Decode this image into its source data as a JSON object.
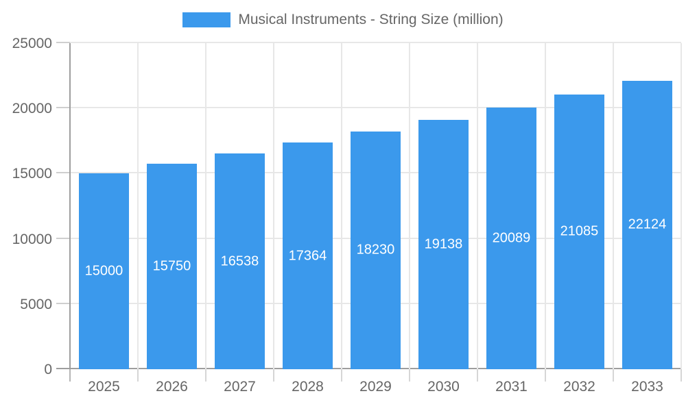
{
  "chart_data": {
    "type": "bar",
    "title": "Musical Instruments - String Size (million)",
    "legend": [
      "Musical Instruments - String Size (million)"
    ],
    "legend_position": "top",
    "categories": [
      "2025",
      "2026",
      "2027",
      "2028",
      "2029",
      "2030",
      "2031",
      "2032",
      "2033"
    ],
    "values": [
      15000,
      15750,
      16538,
      17364,
      18230,
      19138,
      20089,
      21085,
      22124
    ],
    "xlabel": "",
    "ylabel": "",
    "ylim": [
      0,
      25000
    ],
    "yticks": [
      0,
      5000,
      10000,
      15000,
      20000,
      25000
    ],
    "grid": true,
    "colors": {
      "bar": "#3B99EC",
      "value_label": "#FFFFFF",
      "axis_text": "#666666",
      "grid_line": "#E7E7E7",
      "axis_line": "#9E9E9E"
    }
  }
}
